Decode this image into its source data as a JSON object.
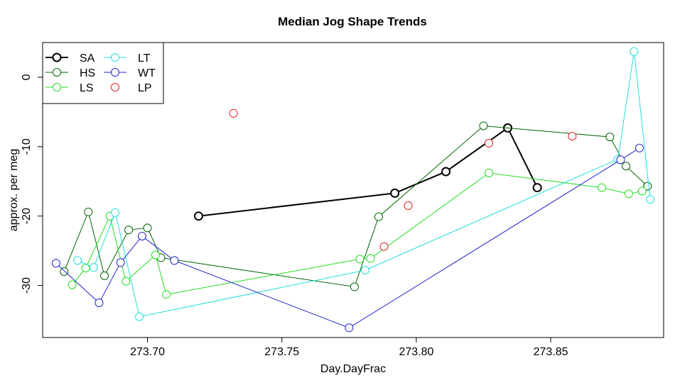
{
  "chart_data": {
    "type": "line",
    "title": "Median Jog Shape Trends",
    "xlabel": "Day.DayFrac",
    "ylabel": "approx. per meg",
    "xlim": [
      273.661,
      273.892
    ],
    "ylim": [
      -37.5,
      5
    ],
    "x_ticks": [
      273.7,
      273.75,
      273.8,
      273.85
    ],
    "x_tick_labels": [
      "273.70",
      "273.75",
      "273.80",
      "273.85"
    ],
    "y_ticks": [
      -30,
      -20,
      -10,
      0
    ],
    "y_tick_labels": [
      "-30",
      "-20",
      "-10",
      "0"
    ],
    "grid": false,
    "legend_position": "top-left",
    "series": [
      {
        "name": "SA",
        "color": "#000000",
        "line": true,
        "bold": true,
        "points": [
          [
            273.719,
            -20.0
          ],
          [
            273.792,
            -16.7
          ],
          [
            273.811,
            -13.6
          ],
          [
            273.834,
            -7.3
          ],
          [
            273.845,
            -15.9
          ]
        ]
      },
      {
        "name": "HS",
        "color": "#006400",
        "line": true,
        "bold": false,
        "points": [
          [
            273.669,
            -28.0
          ],
          [
            273.678,
            -19.4
          ],
          [
            273.684,
            -28.6
          ],
          [
            273.693,
            -22.0
          ],
          [
            273.7,
            -21.7
          ],
          [
            273.705,
            -26.0
          ],
          [
            273.777,
            -30.2
          ],
          [
            273.786,
            -20.1
          ],
          [
            273.825,
            -7.0
          ],
          [
            273.872,
            -8.6
          ],
          [
            273.878,
            -12.8
          ],
          [
            273.886,
            -15.7
          ]
        ]
      },
      {
        "name": "LS",
        "color": "#22dd22",
        "line": true,
        "bold": false,
        "points": [
          [
            273.672,
            -29.9
          ],
          [
            273.677,
            -27.5
          ],
          [
            273.686,
            -20.0
          ],
          [
            273.692,
            -29.4
          ],
          [
            273.703,
            -25.6
          ],
          [
            273.707,
            -31.3
          ],
          [
            273.779,
            -26.2
          ],
          [
            273.783,
            -26.1
          ],
          [
            273.827,
            -13.8
          ],
          [
            273.869,
            -15.9
          ],
          [
            273.879,
            -16.8
          ],
          [
            273.884,
            -16.4
          ]
        ]
      },
      {
        "name": "LT",
        "color": "#22dddd",
        "line": true,
        "bold": false,
        "points": [
          [
            273.674,
            -26.4
          ],
          [
            273.68,
            -27.4
          ],
          [
            273.688,
            -19.5
          ],
          [
            273.697,
            -34.5
          ],
          [
            273.781,
            -27.8
          ],
          [
            273.875,
            -11.8
          ],
          [
            273.881,
            3.7
          ],
          [
            273.887,
            -17.6
          ]
        ]
      },
      {
        "name": "WT",
        "color": "#2222cc",
        "line": true,
        "bold": false,
        "points": [
          [
            273.666,
            -26.8
          ],
          [
            273.682,
            -32.5
          ],
          [
            273.69,
            -26.7
          ],
          [
            273.698,
            -22.9
          ],
          [
            273.71,
            -26.4
          ],
          [
            273.775,
            -36.1
          ],
          [
            273.876,
            -11.9
          ],
          [
            273.883,
            -10.2
          ]
        ]
      },
      {
        "name": "LP",
        "color": "#dd2222",
        "line": false,
        "bold": false,
        "points": [
          [
            273.732,
            -5.2
          ],
          [
            273.788,
            -24.4
          ],
          [
            273.797,
            -18.5
          ],
          [
            273.827,
            -9.5
          ],
          [
            273.858,
            -8.5
          ]
        ]
      }
    ]
  }
}
